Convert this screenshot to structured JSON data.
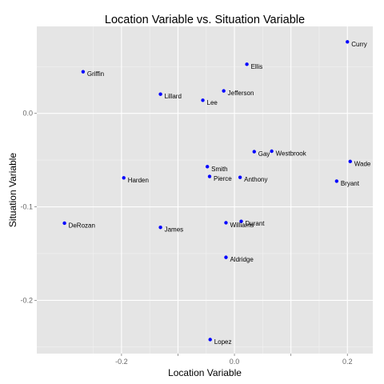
{
  "chart_data": {
    "type": "scatter",
    "title": "Location Variable vs. Situation Variable",
    "xlabel": "Location Variable",
    "ylabel": "Situation Variable",
    "xlim": [
      -0.35,
      0.245
    ],
    "ylim": [
      -0.257,
      0.093
    ],
    "x_ticks": [
      -0.2,
      -0.1,
      0.0,
      0.1,
      0.2
    ],
    "x_tick_labels": [
      "-0.2",
      "",
      "0.0",
      "",
      "0.2"
    ],
    "y_ticks": [
      -0.2,
      -0.1,
      0.0
    ],
    "y_tick_labels": [
      "-0.2",
      "-0.1",
      "0.0"
    ],
    "grid": true,
    "background": "#e5e5e5",
    "grid_major_color": "#ffffff",
    "grid_minor_color": "#f2f2f2",
    "point_color": "#0000ff",
    "points": [
      {
        "label": "Curry",
        "x": 0.2,
        "y": 0.0765
      },
      {
        "label": "Ellis",
        "x": 0.022,
        "y": 0.0525
      },
      {
        "label": "Griffin",
        "x": -0.268,
        "y": 0.0445
      },
      {
        "label": "Jefferson",
        "x": -0.019,
        "y": 0.024
      },
      {
        "label": "Lillard",
        "x": -0.131,
        "y": 0.0205
      },
      {
        "label": "Lee",
        "x": -0.056,
        "y": 0.014
      },
      {
        "label": "Gay",
        "x": 0.035,
        "y": -0.041
      },
      {
        "label": "Westbrook",
        "x": 0.066,
        "y": -0.0405
      },
      {
        "label": "Wade",
        "x": 0.205,
        "y": -0.0515
      },
      {
        "label": "Smith",
        "x": -0.048,
        "y": -0.057
      },
      {
        "label": "Harden",
        "x": -0.196,
        "y": -0.069
      },
      {
        "label": "Pierce",
        "x": -0.044,
        "y": -0.0675
      },
      {
        "label": "Anthony",
        "x": 0.01,
        "y": -0.0685
      },
      {
        "label": "Bryant",
        "x": 0.181,
        "y": -0.0725
      },
      {
        "label": "DeRozan",
        "x": -0.301,
        "y": -0.1175
      },
      {
        "label": "Williams",
        "x": -0.015,
        "y": -0.117
      },
      {
        "label": "Durant",
        "x": 0.012,
        "y": -0.1155
      },
      {
        "label": "James",
        "x": -0.131,
        "y": -0.122
      },
      {
        "label": "Aldridge",
        "x": -0.015,
        "y": -0.154
      },
      {
        "label": "Lopez",
        "x": -0.043,
        "y": -0.242
      }
    ]
  }
}
